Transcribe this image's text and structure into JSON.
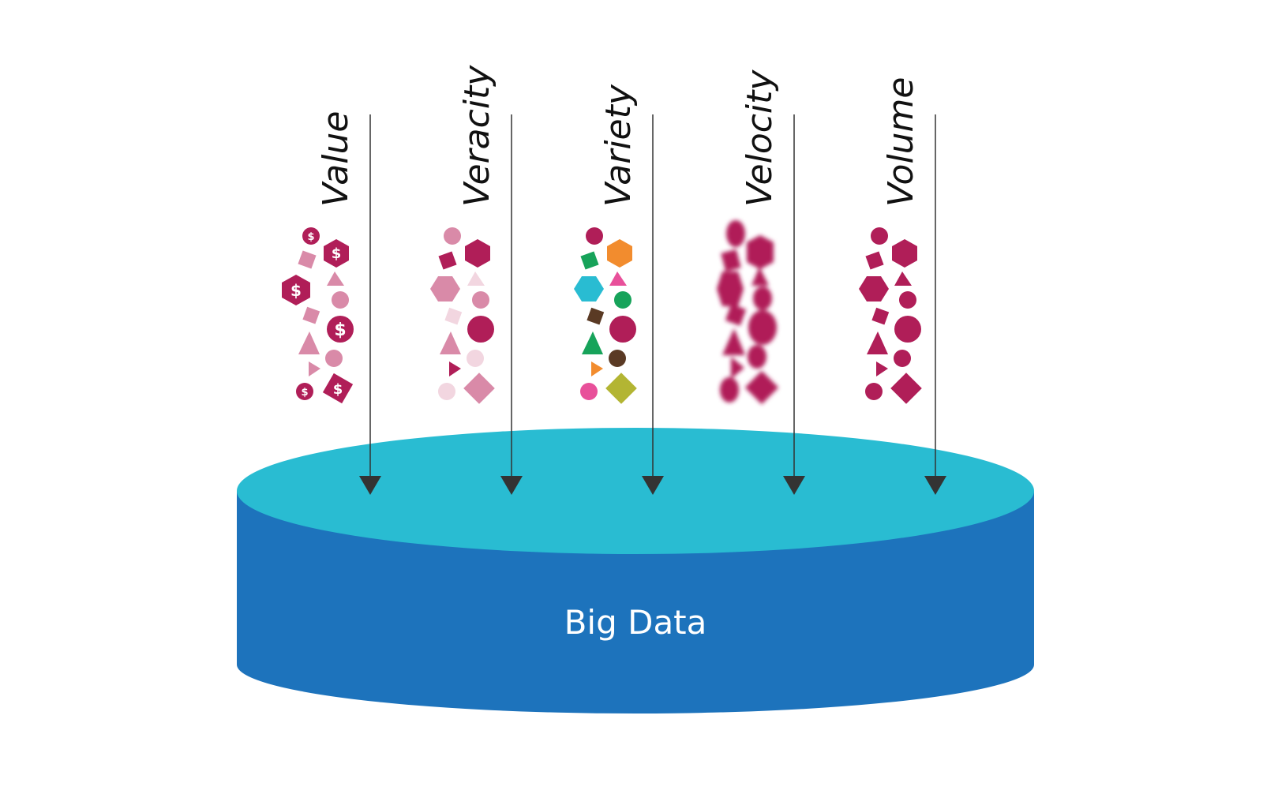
{
  "center_label": "Big Data",
  "colors": {
    "cylinder_top": "#29bcd2",
    "cylinder_side": "#1d73bc",
    "arrow": "#333333",
    "magenta": "#b01e58",
    "pink": "#d98aa8",
    "light_pink": "#f2d6e0"
  },
  "columns": [
    {
      "label": "Value",
      "style": "dollar-icons"
    },
    {
      "label": "Veracity",
      "style": "faded-shapes"
    },
    {
      "label": "Variety",
      "style": "multicolor-shapes"
    },
    {
      "label": "Velocity",
      "style": "blurred-shapes"
    },
    {
      "label": "Volume",
      "style": "solid-shapes"
    }
  ]
}
